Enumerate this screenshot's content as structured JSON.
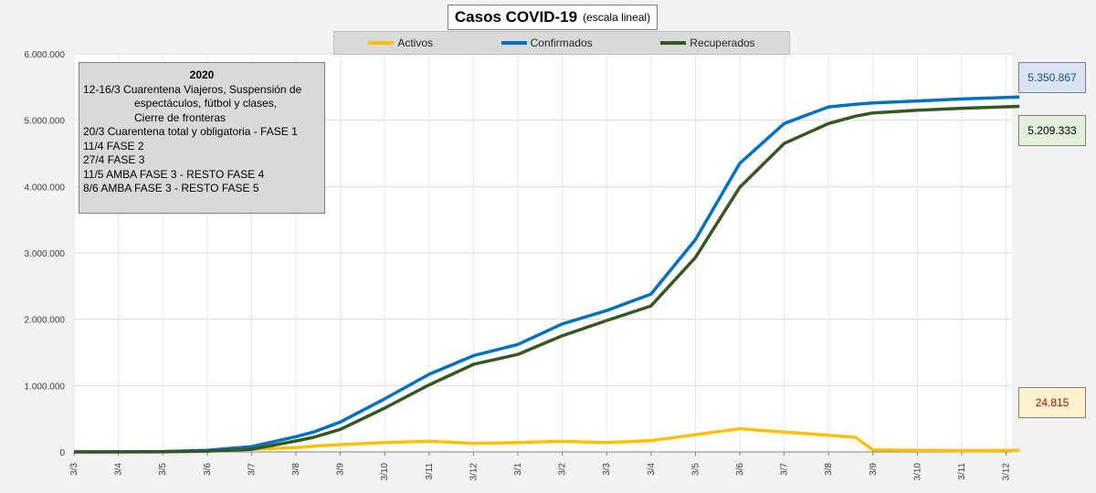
{
  "title": "Casos COVID-19",
  "subtitle": "(escala lineal)",
  "notes": {
    "year": "2020",
    "lines": [
      {
        "text": "12-16/3  Cuarentena Viajeros, Suspensión de",
        "indent": false
      },
      {
        "text": "espectáculos, fútbol y clases,",
        "indent": true
      },
      {
        "text": "Cierre de fronteras",
        "indent": true
      },
      {
        "text": "20/3 Cuarentena total y obligatoria - FASE 1",
        "indent": false
      },
      {
        "text": "11/4 FASE 2",
        "indent": false
      },
      {
        "text": "27/4 FASE 3",
        "indent": false
      },
      {
        "text": "11/5 AMBA FASE 3 - RESTO FASE 4",
        "indent": false
      },
      {
        "text": "8/6 AMBA FASE 3 - RESTO FASE 5",
        "indent": false
      }
    ]
  },
  "value_labels": {
    "confirmados": "5.350.867",
    "recuperados": "5.209.333",
    "activos": "24.815"
  },
  "colors": {
    "activos": "#ffc000",
    "confirmados": "#0070c0",
    "recuperados": "#375623"
  },
  "chart_data": {
    "type": "line",
    "title": "Casos COVID-19",
    "subtitle": "(escala lineal)",
    "legend_position": "top",
    "grid": true,
    "ylim": [
      0,
      6000000
    ],
    "y_ticks": [
      "0",
      "1.000.000",
      "2.000.000",
      "3.000.000",
      "4.000.000",
      "5.000.000",
      "6.000.000"
    ],
    "x_ticks": [
      "3/3",
      "3/4",
      "3/5",
      "3/6",
      "3/7",
      "3/8",
      "3/9",
      "3/10",
      "3/11",
      "3/12",
      "3/1",
      "3/2",
      "3/3",
      "3/4",
      "3/5",
      "3/6",
      "3/7",
      "3/8",
      "3/9",
      "3/10",
      "3/11",
      "3/12"
    ],
    "x": [
      0,
      1,
      2,
      3,
      4,
      5,
      5.4,
      6,
      7,
      8,
      9,
      10,
      11,
      12,
      13,
      14,
      15,
      16,
      17,
      17.6,
      18,
      19,
      20,
      21.3
    ],
    "series": [
      {
        "name": "Activos",
        "key": "activos",
        "values": [
          0,
          500,
          3000,
          12000,
          40000,
          65000,
          85000,
          110000,
          140000,
          160000,
          130000,
          140000,
          160000,
          140000,
          170000,
          260000,
          350000,
          300000,
          250000,
          220000,
          30000,
          25000,
          20000,
          24815
        ]
      },
      {
        "name": "Confirmados",
        "key": "confirmados",
        "values": [
          0,
          1000,
          6000,
          25000,
          80000,
          230000,
          300000,
          450000,
          800000,
          1170000,
          1450000,
          1620000,
          1930000,
          2130000,
          2380000,
          3200000,
          4350000,
          4950000,
          5200000,
          5240000,
          5260000,
          5290000,
          5320000,
          5350867
        ]
      },
      {
        "name": "Recuperados",
        "key": "recuperados",
        "values": [
          0,
          200,
          2000,
          12000,
          40000,
          165000,
          220000,
          340000,
          660000,
          1010000,
          1320000,
          1470000,
          1750000,
          1980000,
          2200000,
          2930000,
          3990000,
          4650000,
          4950000,
          5060000,
          5110000,
          5150000,
          5180000,
          5209333
        ]
      }
    ]
  }
}
